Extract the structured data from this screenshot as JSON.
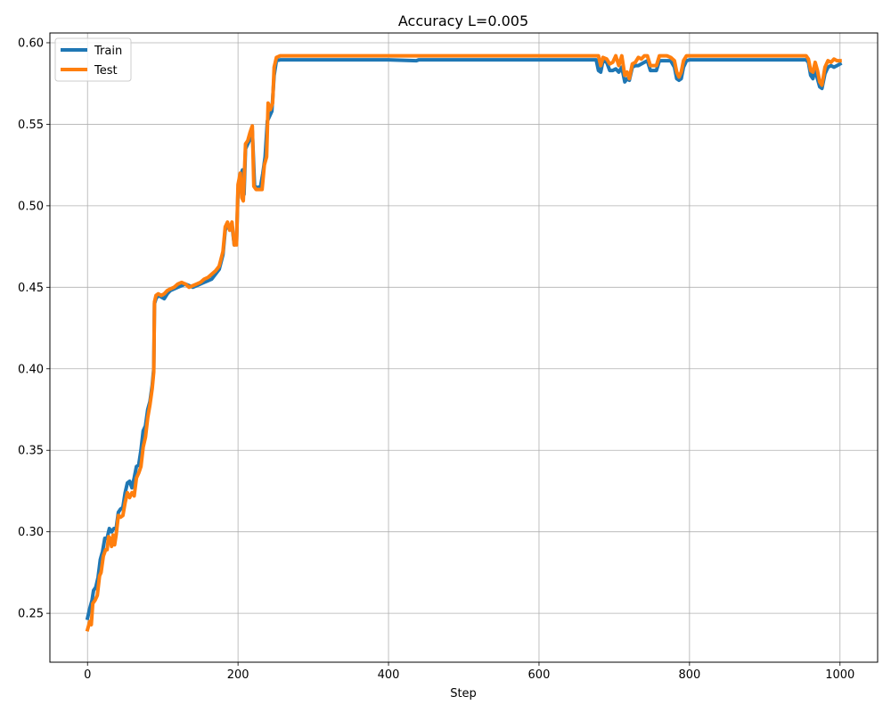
{
  "chart_data": {
    "type": "line",
    "title": "Accuracy L=0.005",
    "xlabel": "Step",
    "ylabel": "",
    "xlim": [
      -50,
      1050
    ],
    "ylim": [
      0.22,
      0.606
    ],
    "xticks": [
      0,
      200,
      400,
      600,
      800,
      1000
    ],
    "xtick_labels": [
      "0",
      "200",
      "400",
      "600",
      "800",
      "1000"
    ],
    "yticks": [
      0.25,
      0.3,
      0.35,
      0.4,
      0.45,
      0.5,
      0.55,
      0.6
    ],
    "ytick_labels": [
      "0.25",
      "0.30",
      "0.35",
      "0.40",
      "0.45",
      "0.50",
      "0.55",
      "0.60"
    ],
    "grid": true,
    "legend_position": "top-left",
    "series": [
      {
        "name": "Train",
        "color": "#1f77b4",
        "points": [
          [
            0,
            0.247
          ],
          [
            3,
            0.253
          ],
          [
            6,
            0.258
          ],
          [
            8,
            0.264
          ],
          [
            11,
            0.266
          ],
          [
            14,
            0.272
          ],
          [
            17,
            0.283
          ],
          [
            20,
            0.288
          ],
          [
            23,
            0.296
          ],
          [
            26,
            0.296
          ],
          [
            29,
            0.302
          ],
          [
            32,
            0.3
          ],
          [
            35,
            0.302
          ],
          [
            38,
            0.302
          ],
          [
            41,
            0.312
          ],
          [
            44,
            0.314
          ],
          [
            47,
            0.315
          ],
          [
            50,
            0.324
          ],
          [
            53,
            0.33
          ],
          [
            56,
            0.331
          ],
          [
            59,
            0.327
          ],
          [
            62,
            0.333
          ],
          [
            65,
            0.34
          ],
          [
            68,
            0.341
          ],
          [
            71,
            0.35
          ],
          [
            74,
            0.362
          ],
          [
            77,
            0.365
          ],
          [
            80,
            0.375
          ],
          [
            83,
            0.38
          ],
          [
            86,
            0.39
          ],
          [
            88,
            0.4
          ],
          [
            89,
            0.44
          ],
          [
            91,
            0.443
          ],
          [
            94,
            0.445
          ],
          [
            98,
            0.444
          ],
          [
            102,
            0.443
          ],
          [
            106,
            0.446
          ],
          [
            110,
            0.448
          ],
          [
            115,
            0.449
          ],
          [
            120,
            0.45
          ],
          [
            125,
            0.451
          ],
          [
            130,
            0.452
          ],
          [
            135,
            0.451
          ],
          [
            140,
            0.45
          ],
          [
            145,
            0.451
          ],
          [
            150,
            0.452
          ],
          [
            155,
            0.453
          ],
          [
            160,
            0.454
          ],
          [
            165,
            0.455
          ],
          [
            170,
            0.458
          ],
          [
            175,
            0.461
          ],
          [
            180,
            0.47
          ],
          [
            183,
            0.485
          ],
          [
            186,
            0.488
          ],
          [
            189,
            0.486
          ],
          [
            192,
            0.488
          ],
          [
            195,
            0.476
          ],
          [
            198,
            0.477
          ],
          [
            200,
            0.51
          ],
          [
            203,
            0.518
          ],
          [
            206,
            0.522
          ],
          [
            208,
            0.507
          ],
          [
            210,
            0.535
          ],
          [
            213,
            0.538
          ],
          [
            216,
            0.541
          ],
          [
            219,
            0.546
          ],
          [
            222,
            0.512
          ],
          [
            226,
            0.511
          ],
          [
            230,
            0.512
          ],
          [
            233,
            0.52
          ],
          [
            236,
            0.53
          ],
          [
            239,
            0.552
          ],
          [
            242,
            0.555
          ],
          [
            245,
            0.558
          ],
          [
            248,
            0.58
          ],
          [
            251,
            0.589
          ],
          [
            256,
            0.5895
          ],
          [
            280,
            0.5895
          ],
          [
            320,
            0.5895
          ],
          [
            400,
            0.5895
          ],
          [
            437,
            0.589
          ],
          [
            440,
            0.5895
          ],
          [
            500,
            0.5895
          ],
          [
            600,
            0.5895
          ],
          [
            660,
            0.5895
          ],
          [
            676,
            0.5895
          ],
          [
            679,
            0.583
          ],
          [
            682,
            0.582
          ],
          [
            685,
            0.589
          ],
          [
            690,
            0.588
          ],
          [
            694,
            0.583
          ],
          [
            698,
            0.583
          ],
          [
            702,
            0.584
          ],
          [
            706,
            0.582
          ],
          [
            710,
            0.585
          ],
          [
            714,
            0.576
          ],
          [
            717,
            0.578
          ],
          [
            720,
            0.577
          ],
          [
            724,
            0.585
          ],
          [
            728,
            0.586
          ],
          [
            732,
            0.586
          ],
          [
            736,
            0.587
          ],
          [
            740,
            0.588
          ],
          [
            744,
            0.589
          ],
          [
            748,
            0.583
          ],
          [
            752,
            0.583
          ],
          [
            756,
            0.583
          ],
          [
            760,
            0.589
          ],
          [
            765,
            0.589
          ],
          [
            770,
            0.589
          ],
          [
            775,
            0.589
          ],
          [
            780,
            0.585
          ],
          [
            783,
            0.578
          ],
          [
            786,
            0.577
          ],
          [
            789,
            0.578
          ],
          [
            792,
            0.585
          ],
          [
            796,
            0.589
          ],
          [
            800,
            0.5895
          ],
          [
            850,
            0.5895
          ],
          [
            900,
            0.5895
          ],
          [
            955,
            0.5895
          ],
          [
            958,
            0.588
          ],
          [
            961,
            0.58
          ],
          [
            964,
            0.578
          ],
          [
            967,
            0.584
          ],
          [
            970,
            0.578
          ],
          [
            973,
            0.573
          ],
          [
            976,
            0.572
          ],
          [
            980,
            0.581
          ],
          [
            984,
            0.585
          ],
          [
            988,
            0.586
          ],
          [
            992,
            0.585
          ],
          [
            996,
            0.586
          ],
          [
            1000,
            0.587
          ]
        ]
      },
      {
        "name": "Test",
        "color": "#ff7f0e",
        "points": [
          [
            0,
            0.24
          ],
          [
            3,
            0.245
          ],
          [
            5,
            0.243
          ],
          [
            7,
            0.256
          ],
          [
            10,
            0.258
          ],
          [
            13,
            0.261
          ],
          [
            16,
            0.273
          ],
          [
            18,
            0.275
          ],
          [
            21,
            0.285
          ],
          [
            24,
            0.289
          ],
          [
            26,
            0.289
          ],
          [
            28,
            0.297
          ],
          [
            30,
            0.296
          ],
          [
            32,
            0.291
          ],
          [
            34,
            0.298
          ],
          [
            36,
            0.292
          ],
          [
            38,
            0.298
          ],
          [
            41,
            0.31
          ],
          [
            44,
            0.309
          ],
          [
            47,
            0.31
          ],
          [
            50,
            0.318
          ],
          [
            53,
            0.324
          ],
          [
            56,
            0.321
          ],
          [
            59,
            0.324
          ],
          [
            62,
            0.322
          ],
          [
            65,
            0.333
          ],
          [
            68,
            0.336
          ],
          [
            71,
            0.34
          ],
          [
            74,
            0.352
          ],
          [
            77,
            0.358
          ],
          [
            80,
            0.37
          ],
          [
            83,
            0.378
          ],
          [
            86,
            0.388
          ],
          [
            88,
            0.398
          ],
          [
            89,
            0.441
          ],
          [
            91,
            0.445
          ],
          [
            94,
            0.446
          ],
          [
            98,
            0.445
          ],
          [
            102,
            0.446
          ],
          [
            106,
            0.448
          ],
          [
            110,
            0.449
          ],
          [
            115,
            0.45
          ],
          [
            120,
            0.452
          ],
          [
            125,
            0.453
          ],
          [
            130,
            0.452
          ],
          [
            135,
            0.45
          ],
          [
            140,
            0.451
          ],
          [
            145,
            0.452
          ],
          [
            150,
            0.453
          ],
          [
            155,
            0.455
          ],
          [
            160,
            0.456
          ],
          [
            165,
            0.458
          ],
          [
            170,
            0.46
          ],
          [
            175,
            0.463
          ],
          [
            180,
            0.472
          ],
          [
            183,
            0.487
          ],
          [
            186,
            0.49
          ],
          [
            189,
            0.485
          ],
          [
            192,
            0.49
          ],
          [
            195,
            0.476
          ],
          [
            198,
            0.476
          ],
          [
            200,
            0.513
          ],
          [
            203,
            0.52
          ],
          [
            205,
            0.505
          ],
          [
            207,
            0.503
          ],
          [
            210,
            0.538
          ],
          [
            213,
            0.54
          ],
          [
            216,
            0.545
          ],
          [
            219,
            0.549
          ],
          [
            221,
            0.512
          ],
          [
            224,
            0.51
          ],
          [
            228,
            0.51
          ],
          [
            232,
            0.51
          ],
          [
            235,
            0.525
          ],
          [
            238,
            0.53
          ],
          [
            240,
            0.563
          ],
          [
            243,
            0.559
          ],
          [
            246,
            0.563
          ],
          [
            248,
            0.585
          ],
          [
            251,
            0.591
          ],
          [
            256,
            0.592
          ],
          [
            280,
            0.592
          ],
          [
            320,
            0.592
          ],
          [
            400,
            0.592
          ],
          [
            500,
            0.592
          ],
          [
            600,
            0.592
          ],
          [
            676,
            0.592
          ],
          [
            679,
            0.592
          ],
          [
            682,
            0.586
          ],
          [
            685,
            0.591
          ],
          [
            690,
            0.59
          ],
          [
            694,
            0.587
          ],
          [
            698,
            0.588
          ],
          [
            702,
            0.592
          ],
          [
            706,
            0.586
          ],
          [
            710,
            0.592
          ],
          [
            714,
            0.58
          ],
          [
            717,
            0.582
          ],
          [
            720,
            0.578
          ],
          [
            724,
            0.587
          ],
          [
            728,
            0.588
          ],
          [
            732,
            0.591
          ],
          [
            736,
            0.59
          ],
          [
            740,
            0.592
          ],
          [
            744,
            0.592
          ],
          [
            748,
            0.586
          ],
          [
            752,
            0.586
          ],
          [
            756,
            0.586
          ],
          [
            760,
            0.592
          ],
          [
            765,
            0.592
          ],
          [
            770,
            0.592
          ],
          [
            775,
            0.591
          ],
          [
            780,
            0.589
          ],
          [
            783,
            0.582
          ],
          [
            786,
            0.579
          ],
          [
            789,
            0.582
          ],
          [
            792,
            0.589
          ],
          [
            796,
            0.592
          ],
          [
            800,
            0.592
          ],
          [
            850,
            0.592
          ],
          [
            900,
            0.592
          ],
          [
            955,
            0.592
          ],
          [
            958,
            0.59
          ],
          [
            961,
            0.583
          ],
          [
            964,
            0.582
          ],
          [
            967,
            0.588
          ],
          [
            970,
            0.583
          ],
          [
            973,
            0.576
          ],
          [
            976,
            0.574
          ],
          [
            980,
            0.585
          ],
          [
            984,
            0.589
          ],
          [
            988,
            0.588
          ],
          [
            992,
            0.59
          ],
          [
            996,
            0.589
          ],
          [
            1000,
            0.589
          ]
        ]
      }
    ]
  }
}
